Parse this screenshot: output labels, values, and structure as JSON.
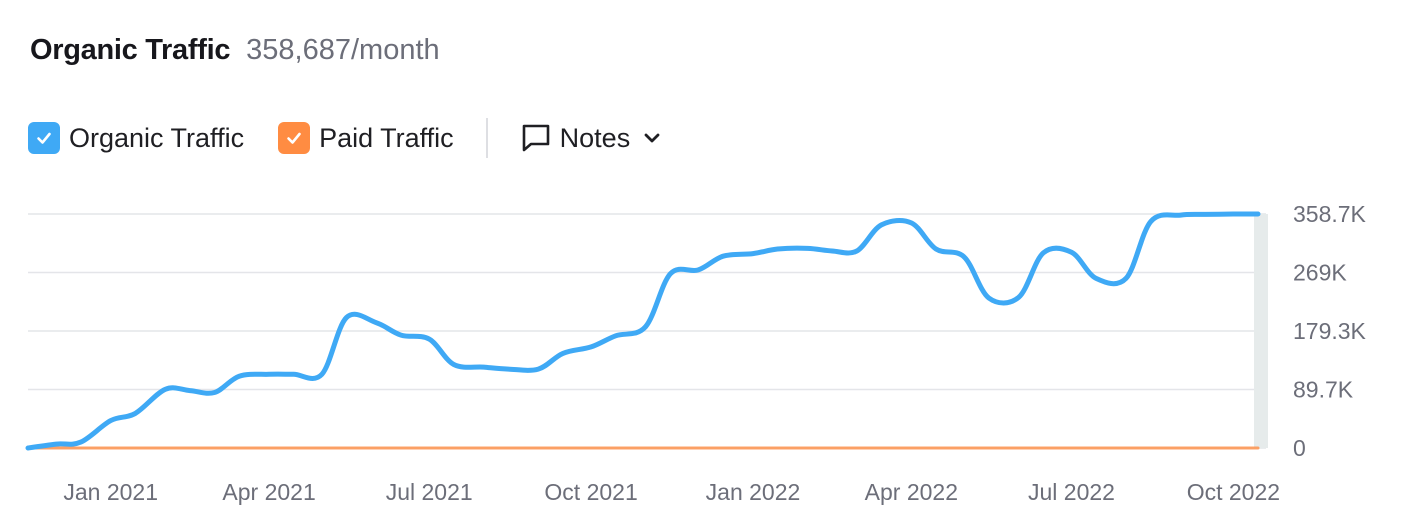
{
  "header": {
    "title": "Organic Traffic",
    "value": "358,687/month"
  },
  "legend": {
    "items": [
      {
        "label": "Organic Traffic",
        "color": "#3fa9f5",
        "checked": true
      },
      {
        "label": "Paid Traffic",
        "color": "#ff8c42",
        "checked": true
      }
    ],
    "notes_label": "Notes"
  },
  "icons": [
    "checkmark-icon",
    "speech-bubble-icon",
    "chevron-down-icon"
  ],
  "chart_data": {
    "type": "line",
    "x": [
      "2020-11-15",
      "2020-12-01",
      "2020-12-15",
      "2021-01-01",
      "2021-01-15",
      "2021-02-01",
      "2021-02-15",
      "2021-03-01",
      "2021-03-15",
      "2021-04-01",
      "2021-04-15",
      "2021-05-01",
      "2021-05-15",
      "2021-06-01",
      "2021-06-15",
      "2021-07-01",
      "2021-07-15",
      "2021-08-01",
      "2021-08-15",
      "2021-09-01",
      "2021-09-15",
      "2021-10-01",
      "2021-10-15",
      "2021-11-01",
      "2021-11-15",
      "2021-12-01",
      "2021-12-15",
      "2022-01-01",
      "2022-01-15",
      "2022-02-01",
      "2022-02-15",
      "2022-03-01",
      "2022-03-15",
      "2022-04-01",
      "2022-04-15",
      "2022-05-01",
      "2022-05-15",
      "2022-06-01",
      "2022-06-15",
      "2022-07-01",
      "2022-07-15",
      "2022-08-01",
      "2022-08-15",
      "2022-09-01",
      "2022-09-15",
      "2022-10-01",
      "2022-10-15"
    ],
    "series": [
      {
        "name": "Organic Traffic",
        "color": "#3fa9f5",
        "values": [
          0,
          6000,
          9000,
          42000,
          53000,
          90000,
          88000,
          85000,
          110000,
          113000,
          113000,
          113000,
          200000,
          192000,
          173000,
          167000,
          128000,
          124000,
          121000,
          121000,
          145000,
          155000,
          172000,
          186000,
          267000,
          273000,
          294000,
          298000,
          305000,
          306000,
          302000,
          302000,
          342000,
          345000,
          305000,
          293000,
          230000,
          231000,
          299000,
          300000,
          260000,
          260000,
          347000,
          357000,
          358000,
          358687,
          358687
        ]
      },
      {
        "name": "Paid Traffic",
        "color": "#ff8c42",
        "values": [
          0,
          0,
          0,
          0,
          0,
          0,
          0,
          0,
          0,
          0,
          0,
          0,
          0,
          0,
          0,
          0,
          0,
          0,
          0,
          0,
          0,
          0,
          0,
          0,
          0,
          0,
          0,
          0,
          0,
          0,
          0,
          0,
          0,
          0,
          0,
          0,
          0,
          0,
          0,
          0,
          0,
          0,
          0,
          0,
          0,
          0,
          0
        ]
      }
    ],
    "x_ticks": [
      "Jan 2021",
      "Apr 2021",
      "Jul 2021",
      "Oct 2021",
      "Jan 2022",
      "Apr 2022",
      "Jul 2022",
      "Oct 2022"
    ],
    "y_ticks": [
      "358.7K",
      "269K",
      "179.3K",
      "89.7K",
      "0"
    ],
    "ylim": [
      0,
      358687
    ],
    "grid": true
  }
}
